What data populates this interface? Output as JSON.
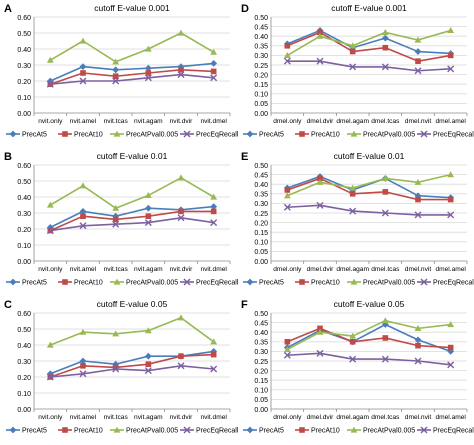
{
  "chart_data": [
    {
      "panel": "A",
      "type": "line",
      "title": "cutoff E-value 0.001",
      "categories": [
        "nvit.only",
        "nvit.amel",
        "nvit.tcas",
        "nvit.agam",
        "nvit.dvir",
        "nvit.dmel"
      ],
      "ylim": [
        0,
        0.6
      ],
      "yticks": [
        "0.00",
        "0.10",
        "0.20",
        "0.30",
        "0.40",
        "0.50",
        "0.60"
      ],
      "grid": true,
      "legend": "bottom",
      "series": [
        {
          "name": "PrecAt5",
          "values": [
            0.2,
            0.29,
            0.27,
            0.28,
            0.29,
            0.31
          ]
        },
        {
          "name": "PrecAt10",
          "values": [
            0.18,
            0.25,
            0.23,
            0.25,
            0.27,
            0.26
          ]
        },
        {
          "name": "PrecAtPval0.005",
          "values": [
            0.33,
            0.45,
            0.32,
            0.4,
            0.5,
            0.38
          ]
        },
        {
          "name": "PrecEqRecall",
          "values": [
            0.18,
            0.2,
            0.2,
            0.22,
            0.24,
            0.22
          ]
        }
      ]
    },
    {
      "panel": "D",
      "type": "line",
      "title": "cutoff E-value 0.001",
      "categories": [
        "dmel.only",
        "dmel.dvir",
        "dmel.agam",
        "dmel.tcas",
        "dmel.nvit",
        "dmel.amel"
      ],
      "ylim": [
        0,
        0.5
      ],
      "yticks": [
        "0.00",
        "0.05",
        "0.10",
        "0.15",
        "0.20",
        "0.25",
        "0.30",
        "0.35",
        "0.40",
        "0.45",
        "0.50"
      ],
      "grid": true,
      "legend": "bottom",
      "series": [
        {
          "name": "PrecAt5",
          "values": [
            0.36,
            0.43,
            0.34,
            0.39,
            0.32,
            0.31
          ]
        },
        {
          "name": "PrecAt10",
          "values": [
            0.35,
            0.42,
            0.32,
            0.34,
            0.27,
            0.3
          ]
        },
        {
          "name": "PrecAtPval0.005",
          "values": [
            0.3,
            0.4,
            0.35,
            0.42,
            0.38,
            0.43
          ]
        },
        {
          "name": "PrecEqRecall",
          "values": [
            0.27,
            0.27,
            0.24,
            0.24,
            0.22,
            0.23
          ]
        }
      ]
    },
    {
      "panel": "B",
      "type": "line",
      "title": "cutoff E-value 0.01",
      "categories": [
        "nvit.only",
        "nvit.amel",
        "nvit.tcas",
        "nvit.agam",
        "nvit.dvir",
        "nvit.dmel"
      ],
      "ylim": [
        0,
        0.6
      ],
      "yticks": [
        "0.00",
        "0.10",
        "0.20",
        "0.30",
        "0.40",
        "0.50",
        "0.60"
      ],
      "grid": true,
      "legend": "bottom",
      "series": [
        {
          "name": "PrecAt5",
          "values": [
            0.21,
            0.31,
            0.28,
            0.33,
            0.32,
            0.34
          ]
        },
        {
          "name": "PrecAt10",
          "values": [
            0.19,
            0.28,
            0.26,
            0.28,
            0.31,
            0.31
          ]
        },
        {
          "name": "PrecAtPval0.005",
          "values": [
            0.35,
            0.47,
            0.33,
            0.41,
            0.52,
            0.4
          ]
        },
        {
          "name": "PrecEqRecall",
          "values": [
            0.19,
            0.22,
            0.23,
            0.24,
            0.27,
            0.24
          ]
        }
      ]
    },
    {
      "panel": "E",
      "type": "line",
      "title": "cutoff E-value 0.01",
      "categories": [
        "dmel.only",
        "dmel.dvir",
        "dmel.agam",
        "dmel.tcas",
        "dmel.nvit",
        "dmel.amel"
      ],
      "ylim": [
        0,
        0.5
      ],
      "yticks": [
        "0.00",
        "0.05",
        "0.10",
        "0.15",
        "0.20",
        "0.25",
        "0.30",
        "0.35",
        "0.40",
        "0.45",
        "0.50"
      ],
      "grid": true,
      "legend": "bottom",
      "series": [
        {
          "name": "PrecAt5",
          "values": [
            0.38,
            0.44,
            0.37,
            0.43,
            0.34,
            0.33
          ]
        },
        {
          "name": "PrecAt10",
          "values": [
            0.37,
            0.43,
            0.35,
            0.36,
            0.32,
            0.32
          ]
        },
        {
          "name": "PrecAtPval0.005",
          "values": [
            0.34,
            0.41,
            0.38,
            0.43,
            0.41,
            0.45
          ]
        },
        {
          "name": "PrecEqRecall",
          "values": [
            0.28,
            0.29,
            0.26,
            0.25,
            0.24,
            0.24
          ]
        }
      ]
    },
    {
      "panel": "C",
      "type": "line",
      "title": "cutoff E-value 0.05",
      "categories": [
        "nvit.only",
        "nvit.amel",
        "nvit.tcas",
        "nvit.agam",
        "nvit.dvir",
        "nvit.dmel"
      ],
      "ylim": [
        0,
        0.6
      ],
      "yticks": [
        "0.00",
        "0.10",
        "0.20",
        "0.30",
        "0.40",
        "0.50",
        "0.60"
      ],
      "grid": true,
      "legend": "bottom",
      "series": [
        {
          "name": "PrecAt5",
          "values": [
            0.22,
            0.3,
            0.28,
            0.33,
            0.33,
            0.36
          ]
        },
        {
          "name": "PrecAt10",
          "values": [
            0.2,
            0.27,
            0.26,
            0.28,
            0.33,
            0.34
          ]
        },
        {
          "name": "PrecAtPval0.005",
          "values": [
            0.4,
            0.48,
            0.47,
            0.49,
            0.57,
            0.42
          ]
        },
        {
          "name": "PrecEqRecall",
          "values": [
            0.2,
            0.22,
            0.25,
            0.24,
            0.27,
            0.25
          ]
        }
      ]
    },
    {
      "panel": "F",
      "type": "line",
      "title": "cutoff E-value 0.05",
      "categories": [
        "dmel.only",
        "dmel.dvir",
        "dmel.agam",
        "dmel.tcas",
        "dmel.nvit",
        "dmel.amel"
      ],
      "ylim": [
        0,
        0.5
      ],
      "yticks": [
        "0.00",
        "0.05",
        "0.10",
        "0.15",
        "0.20",
        "0.25",
        "0.30",
        "0.35",
        "0.40",
        "0.45",
        "0.50"
      ],
      "grid": true,
      "legend": "bottom",
      "series": [
        {
          "name": "PrecAt5",
          "values": [
            0.32,
            0.41,
            0.35,
            0.44,
            0.36,
            0.3
          ]
        },
        {
          "name": "PrecAt10",
          "values": [
            0.35,
            0.42,
            0.35,
            0.37,
            0.33,
            0.32
          ]
        },
        {
          "name": "PrecAtPval0.005",
          "values": [
            0.31,
            0.4,
            0.38,
            0.46,
            0.42,
            0.44
          ]
        },
        {
          "name": "PrecEqRecall",
          "values": [
            0.28,
            0.29,
            0.26,
            0.26,
            0.25,
            0.23
          ]
        }
      ]
    }
  ],
  "colors": {
    "PrecAt5": "#4a7ebb",
    "PrecAt10": "#be4b48",
    "PrecAtPval0.005": "#98b954",
    "PrecEqRecall": "#7d60a0",
    "grid": "#d9d9d9",
    "axis": "#8c8c8c",
    "text": "#000000"
  },
  "markers": {
    "PrecAt5": "diamond-icon",
    "PrecAt10": "square-icon",
    "PrecAtPval0.005": "triangle-icon",
    "PrecEqRecall": "x-icon"
  }
}
